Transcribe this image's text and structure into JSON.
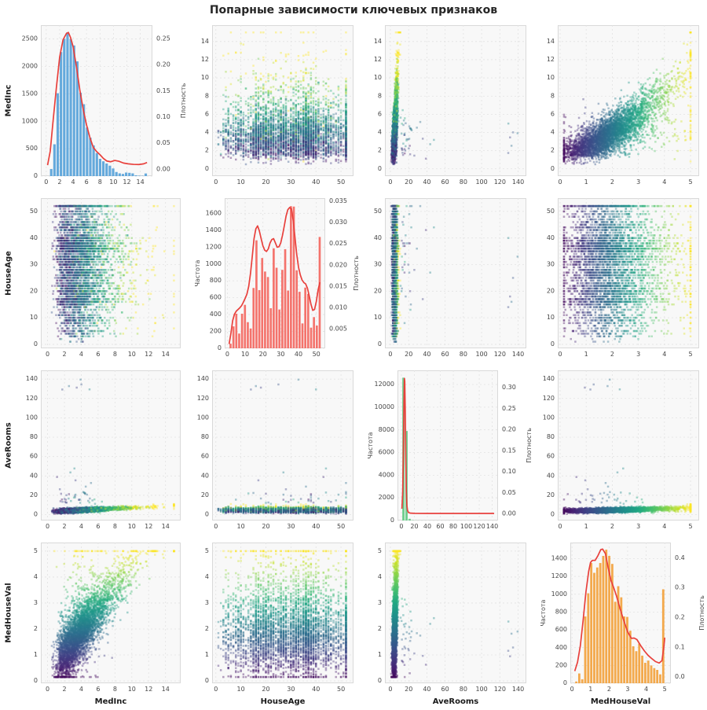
{
  "title": "Попарные зависимости ключевых признаков",
  "labels": {
    "frequency": "Частота",
    "density": "Плотность"
  },
  "chart_data": {
    "type": "scatter_matrix",
    "title": "Попарные зависимости ключевых признаков",
    "point_hue": "MedHouseVal",
    "colormap": "viridis",
    "variables": [
      {
        "name": "MedInc",
        "range": [
          -0.8,
          15.8
        ],
        "ticks": [
          0,
          2,
          4,
          6,
          8,
          10,
          12,
          14
        ]
      },
      {
        "name": "HouseAge",
        "range": [
          -1.5,
          55.0
        ],
        "ticks": [
          0,
          10,
          20,
          30,
          40,
          50
        ]
      },
      {
        "name": "AveRooms",
        "range": [
          -6.0,
          149.0
        ],
        "ticks": [
          0,
          20,
          40,
          60,
          80,
          100,
          120,
          140
        ]
      },
      {
        "name": "MedHouseVal",
        "range": [
          -0.09,
          5.33
        ],
        "ticks": [
          0,
          1,
          2,
          3,
          4,
          5
        ]
      }
    ],
    "diagonals": [
      {
        "var": "MedInc",
        "bar_color": "#64A9DC",
        "count_label": null,
        "count_ticks": [
          0,
          500,
          1000,
          1500,
          2000,
          2500
        ],
        "count_max": 2750,
        "density_label": "Плотность",
        "density_ticks": [
          0.0,
          0.05,
          0.1,
          0.15,
          0.2,
          0.25
        ],
        "density_range": [
          -0.013,
          0.276
        ],
        "density_decimals": 2,
        "bins": {
          "start": 0.5,
          "end": 15.05,
          "snap_last": 15.0,
          "values": [
            130,
            580,
            1510,
            2260,
            2500,
            2620,
            2495,
            2380,
            2090,
            1520,
            1310,
            885,
            700,
            560,
            420,
            315,
            270,
            230,
            190,
            140,
            75,
            50,
            40,
            65,
            60,
            50,
            15,
            8,
            5,
            48
          ]
        },
        "kde": [
          [
            0.2,
            0.008
          ],
          [
            0.6,
            0.035
          ],
          [
            1,
            0.09
          ],
          [
            1.5,
            0.155
          ],
          [
            2,
            0.215
          ],
          [
            2.5,
            0.248
          ],
          [
            3,
            0.26
          ],
          [
            3.3,
            0.262
          ],
          [
            3.6,
            0.253
          ],
          [
            4,
            0.235
          ],
          [
            4.5,
            0.196
          ],
          [
            5,
            0.152
          ],
          [
            5.5,
            0.115
          ],
          [
            6,
            0.085
          ],
          [
            6.5,
            0.061
          ],
          [
            7,
            0.042
          ],
          [
            7.5,
            0.034
          ],
          [
            8,
            0.028
          ],
          [
            8.5,
            0.021
          ],
          [
            9,
            0.016
          ],
          [
            9.6,
            0.0145
          ],
          [
            10.2,
            0.017
          ],
          [
            10.8,
            0.0155
          ],
          [
            11.5,
            0.012
          ],
          [
            12.2,
            0.0105
          ],
          [
            13,
            0.0095
          ],
          [
            13.8,
            0.0092
          ],
          [
            14.5,
            0.0105
          ],
          [
            15,
            0.013
          ]
        ]
      },
      {
        "var": "HouseAge",
        "bar_color": "#F4736C",
        "count_label": "Частота",
        "count_ticks": [
          0,
          200,
          400,
          600,
          800,
          1000,
          1200,
          1400,
          1600
        ],
        "count_max": 1780,
        "density_label": "Плотность",
        "density_ticks": [
          0.005,
          0.01,
          0.015,
          0.02,
          0.025,
          0.03,
          0.035
        ],
        "density_range": [
          0.0005,
          0.0357
        ],
        "density_decimals": 3,
        "bins": {
          "start": 1.0,
          "end": 52.7,
          "snap_last": 52.0,
          "values": [
            55,
            260,
            410,
            175,
            410,
            515,
            310,
            235,
            715,
            1280,
            690,
            1070,
            910,
            845,
            475,
            1185,
            955,
            460,
            930,
            1175,
            685,
            1685,
            1680,
            925,
            670,
            295,
            720,
            645,
            245,
            370,
            270,
            1320
          ]
        },
        "kde": [
          [
            1,
            0.0015
          ],
          [
            2,
            0.004
          ],
          [
            3,
            0.007
          ],
          [
            4,
            0.0085
          ],
          [
            5,
            0.0092
          ],
          [
            6,
            0.0096
          ],
          [
            7,
            0.01
          ],
          [
            8,
            0.0105
          ],
          [
            9,
            0.0113
          ],
          [
            10,
            0.0122
          ],
          [
            11,
            0.0132
          ],
          [
            12,
            0.015
          ],
          [
            13,
            0.018
          ],
          [
            14,
            0.022
          ],
          [
            15,
            0.0262
          ],
          [
            16,
            0.0285
          ],
          [
            17,
            0.0292
          ],
          [
            18,
            0.028
          ],
          [
            19,
            0.0262
          ],
          [
            20,
            0.0245
          ],
          [
            21,
            0.0235
          ],
          [
            22,
            0.0232
          ],
          [
            23,
            0.0238
          ],
          [
            24,
            0.0252
          ],
          [
            25,
            0.026
          ],
          [
            26,
            0.0262
          ],
          [
            27,
            0.0252
          ],
          [
            28,
            0.0242
          ],
          [
            29,
            0.0243
          ],
          [
            30,
            0.0252
          ],
          [
            31,
            0.027
          ],
          [
            32,
            0.0292
          ],
          [
            33,
            0.0315
          ],
          [
            34,
            0.033
          ],
          [
            35,
            0.0335
          ],
          [
            36,
            0.0332
          ],
          [
            37,
            0.0305
          ],
          [
            38,
            0.0265
          ],
          [
            39,
            0.0225
          ],
          [
            40,
            0.0195
          ],
          [
            41,
            0.0177
          ],
          [
            42,
            0.0165
          ],
          [
            43,
            0.0159
          ],
          [
            44,
            0.0156
          ],
          [
            45,
            0.0146
          ],
          [
            46,
            0.0128
          ],
          [
            47,
            0.0108
          ],
          [
            48,
            0.0094
          ],
          [
            49,
            0.0096
          ],
          [
            50,
            0.0115
          ],
          [
            51,
            0.0142
          ],
          [
            52,
            0.016
          ]
        ]
      },
      {
        "var": "AveRooms",
        "bar_color": "#6FCE8E",
        "count_label": "Частота",
        "count_ticks": [
          0,
          2000,
          4000,
          6000,
          8000,
          10000,
          12000
        ],
        "count_max": 13250,
        "density_label": "Плотность",
        "density_ticks": [
          0.0,
          0.05,
          0.1,
          0.15,
          0.2,
          0.25,
          0.3
        ],
        "density_range": [
          -0.016,
          0.341
        ],
        "density_decimals": 2,
        "bins": {
          "start": 0.8,
          "end": 143.0,
          "snap_last": null,
          "values": [
            12600,
            7900,
            150,
            25,
            10,
            6,
            4,
            3,
            2,
            2,
            1,
            1,
            1,
            0,
            0,
            1,
            0,
            0,
            0,
            0,
            0,
            0,
            0,
            0,
            0,
            0,
            0,
            0,
            0,
            1
          ]
        },
        "kde": [
          [
            0.8,
            0.012
          ],
          [
            2,
            0.05
          ],
          [
            3,
            0.14
          ],
          [
            4,
            0.27
          ],
          [
            4.7,
            0.322
          ],
          [
            5.2,
            0.315
          ],
          [
            6,
            0.24
          ],
          [
            6.8,
            0.13
          ],
          [
            7.6,
            0.055
          ],
          [
            8.5,
            0.02
          ],
          [
            9.5,
            0.008
          ],
          [
            11,
            0.003
          ],
          [
            14,
            0.0015
          ],
          [
            20,
            0.001
          ],
          [
            40,
            0.0008
          ],
          [
            80,
            0.0008
          ],
          [
            120,
            0.0008
          ],
          [
            143,
            0.0008
          ]
        ]
      },
      {
        "var": "MedHouseVal",
        "bar_color": "#F3A94C",
        "count_label": "Частота",
        "count_ticks": [
          0,
          200,
          400,
          600,
          800,
          1000,
          1200,
          1400
        ],
        "count_max": 1580,
        "density_label": "Плотность",
        "density_ticks": [
          0.0,
          0.1,
          0.2,
          0.3,
          0.4
        ],
        "density_range": [
          -0.021,
          0.452
        ],
        "density_decimals": 1,
        "bins": {
          "start": 0.15,
          "end": 5.0,
          "snap_last": null,
          "values": [
            20,
            110,
            45,
            750,
            1010,
            1350,
            1240,
            1300,
            1350,
            1430,
            1500,
            1430,
            1340,
            915,
            1090,
            965,
            750,
            745,
            590,
            415,
            360,
            445,
            310,
            230,
            255,
            200,
            170,
            150,
            100,
            1055
          ]
        },
        "kde": [
          [
            0.15,
            0.02
          ],
          [
            0.3,
            0.05
          ],
          [
            0.45,
            0.105
          ],
          [
            0.6,
            0.19
          ],
          [
            0.75,
            0.285
          ],
          [
            0.9,
            0.355
          ],
          [
            1.0,
            0.385
          ],
          [
            1.1,
            0.392
          ],
          [
            1.25,
            0.392
          ],
          [
            1.4,
            0.408
          ],
          [
            1.55,
            0.428
          ],
          [
            1.65,
            0.43
          ],
          [
            1.8,
            0.415
          ],
          [
            1.95,
            0.368
          ],
          [
            2.1,
            0.325
          ],
          [
            2.25,
            0.3
          ],
          [
            2.4,
            0.272
          ],
          [
            2.6,
            0.228
          ],
          [
            2.8,
            0.188
          ],
          [
            3.0,
            0.152
          ],
          [
            3.2,
            0.13
          ],
          [
            3.35,
            0.131
          ],
          [
            3.5,
            0.126
          ],
          [
            3.7,
            0.106
          ],
          [
            3.9,
            0.088
          ],
          [
            4.1,
            0.073
          ],
          [
            4.3,
            0.062
          ],
          [
            4.5,
            0.052
          ],
          [
            4.7,
            0.047
          ],
          [
            4.85,
            0.055
          ],
          [
            4.95,
            0.1
          ],
          [
            5.0,
            0.132
          ]
        ]
      }
    ],
    "scatter_model": {
      "n": 4200,
      "seed": 42,
      "ave_rooms": {
        "base": 3.0,
        "slope": 0.42,
        "sd": 1.05,
        "outlier_p": 0.013,
        "outlier_base": 11,
        "outlier_scale": 9,
        "extreme_p": 0.0006,
        "min": 0.7,
        "max": 143
      },
      "med_house_val": {
        "base": 0.28,
        "slope": 0.4,
        "sd": 0.52,
        "up_tail_p": 0.08,
        "up_tail_scale": 1.3,
        "down_tail_p": 0.03,
        "down_tail_scale": 0.8,
        "min": 0.15,
        "cap": 5.0
      }
    },
    "style": {
      "kde_color": "#E8403C",
      "panel_bg": "#F8F8F8",
      "panel_border": "#D9D9D9",
      "grid_color": "#E2E2E2",
      "tick_color": "#454545",
      "axis_label_color": "#1A1A1A",
      "point_alpha": 0.4,
      "viridis_stops": [
        [
          0,
          "#440154"
        ],
        [
          0.1,
          "#482475"
        ],
        [
          0.2,
          "#414487"
        ],
        [
          0.3,
          "#355f8d"
        ],
        [
          0.4,
          "#2a788e"
        ],
        [
          0.5,
          "#21918c"
        ],
        [
          0.6,
          "#22a884"
        ],
        [
          0.7,
          "#44bf70"
        ],
        [
          0.8,
          "#7ad151"
        ],
        [
          0.9,
          "#bddf26"
        ],
        [
          1,
          "#fde725"
        ]
      ]
    }
  }
}
